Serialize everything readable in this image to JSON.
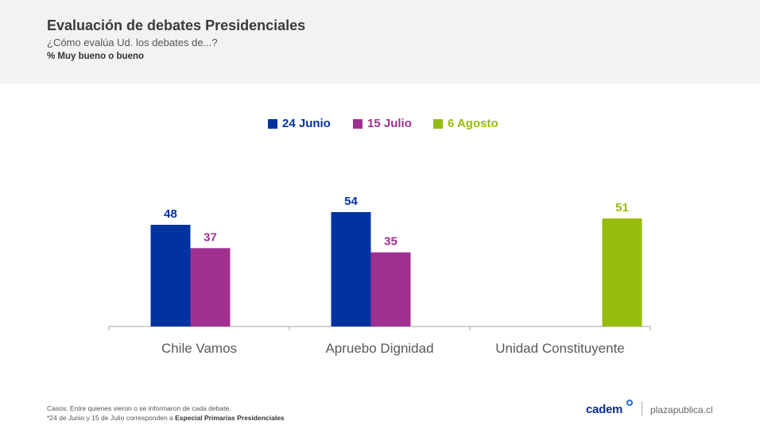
{
  "header": {
    "title": "Evaluación de debates Presidenciales",
    "subtitle": "¿Cómo evalúa Ud. los debates de...?",
    "measure": "% Muy bueno o bueno"
  },
  "chart_data": {
    "type": "bar",
    "categories": [
      "Chile Vamos",
      "Apruebo Dignidad",
      "Unidad Constituyente"
    ],
    "series": [
      {
        "name": "24 Junio",
        "color": "#0033a0",
        "values": [
          48,
          54,
          null
        ]
      },
      {
        "name": "15 Julio",
        "color": "#a0308f",
        "values": [
          37,
          35,
          null
        ]
      },
      {
        "name": "6 Agosto",
        "color": "#96bd0d",
        "values": [
          null,
          null,
          51
        ]
      }
    ],
    "ylim": [
      0,
      60
    ],
    "legend_position": "top-center",
    "grid": false
  },
  "footer": {
    "note1": "Casos: Entre quienes vieron o se informaron de cada debate.",
    "note2_prefix": "*24 de Junio y 15 de Julio corresponden a ",
    "note2_bold": "Especial Primarias Presidenciales",
    "brand": "cadem",
    "site": "plazapublica.cl"
  }
}
